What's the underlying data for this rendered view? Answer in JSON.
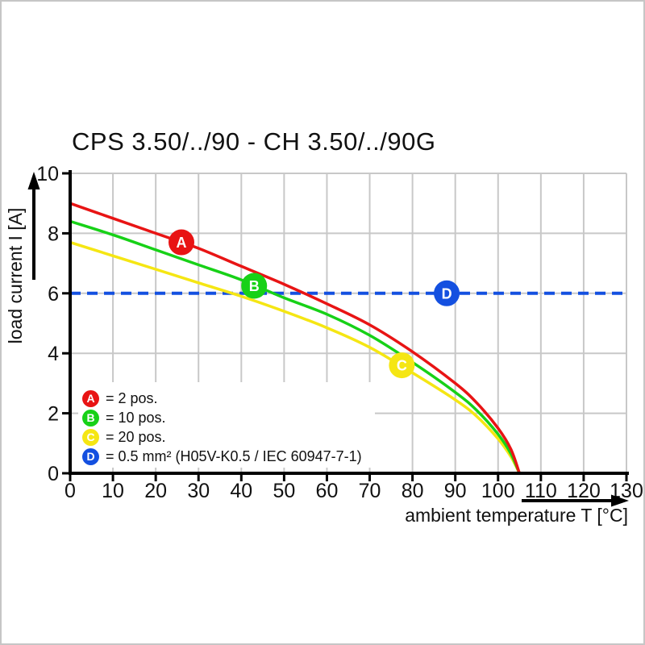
{
  "page": {
    "background": "#ffffff",
    "frame_color": "#c6c6c6"
  },
  "chart_data": {
    "type": "line",
    "title": "CPS 3.50/../90 - CH 3.50/../90G",
    "xlabel": "ambient temperature T [°C]",
    "ylabel": "load current I [A]",
    "xlim": [
      0,
      130
    ],
    "ylim": [
      0,
      10
    ],
    "x_ticks": [
      0,
      10,
      20,
      30,
      40,
      50,
      60,
      70,
      80,
      90,
      100,
      110,
      120,
      130
    ],
    "y_ticks": [
      0,
      2,
      4,
      6,
      8,
      10
    ],
    "grid": true,
    "grid_color": "#c8c8c8",
    "axis_color": "#000000",
    "series": [
      {
        "id": "A",
        "name": "2 pos.",
        "color": "#e81414",
        "style": "solid",
        "points": [
          [
            0,
            9.0
          ],
          [
            10,
            8.5
          ],
          [
            20,
            8.0
          ],
          [
            30,
            7.5
          ],
          [
            40,
            6.9
          ],
          [
            50,
            6.3
          ],
          [
            60,
            5.65
          ],
          [
            70,
            4.95
          ],
          [
            80,
            4.05
          ],
          [
            90,
            3.0
          ],
          [
            95,
            2.35
          ],
          [
            100,
            1.5
          ],
          [
            103,
            0.8
          ],
          [
            105,
            0
          ]
        ]
      },
      {
        "id": "B",
        "name": "10 pos.",
        "color": "#17d117",
        "style": "solid",
        "points": [
          [
            0,
            8.4
          ],
          [
            10,
            7.95
          ],
          [
            20,
            7.45
          ],
          [
            30,
            6.95
          ],
          [
            40,
            6.45
          ],
          [
            50,
            5.85
          ],
          [
            60,
            5.3
          ],
          [
            70,
            4.6
          ],
          [
            80,
            3.7
          ],
          [
            90,
            2.7
          ],
          [
            95,
            2.1
          ],
          [
            100,
            1.3
          ],
          [
            103,
            0.65
          ],
          [
            105,
            0
          ]
        ]
      },
      {
        "id": "C",
        "name": "20 pos.",
        "color": "#f5e613",
        "style": "solid",
        "points": [
          [
            0,
            7.7
          ],
          [
            10,
            7.25
          ],
          [
            20,
            6.8
          ],
          [
            30,
            6.35
          ],
          [
            40,
            5.9
          ],
          [
            50,
            5.4
          ],
          [
            60,
            4.85
          ],
          [
            70,
            4.2
          ],
          [
            80,
            3.35
          ],
          [
            90,
            2.45
          ],
          [
            95,
            1.9
          ],
          [
            100,
            1.15
          ],
          [
            103,
            0.55
          ],
          [
            105,
            0
          ]
        ]
      },
      {
        "id": "D",
        "name": "0.5 mm² (H05V-K0.5 / IEC 60947-7-1)",
        "color": "#1450e0",
        "style": "dashed",
        "points": [
          [
            0,
            6
          ],
          [
            130,
            6
          ]
        ]
      }
    ],
    "markers": [
      {
        "label": "A",
        "x": 26,
        "y": 7.7
      },
      {
        "label": "B",
        "x": 43,
        "y": 6.25
      },
      {
        "label": "C",
        "x": 77.5,
        "y": 3.6
      },
      {
        "label": "D",
        "x": 88,
        "y": 6.0
      }
    ],
    "legend": {
      "position": "inside-bottom-left",
      "items": [
        {
          "key": "A",
          "label": "= 2 pos.",
          "color": "#e81414"
        },
        {
          "key": "B",
          "label": "= 10 pos.",
          "color": "#17d117"
        },
        {
          "key": "C",
          "label": "= 20 pos.",
          "color": "#f5e613"
        },
        {
          "key": "D",
          "label": "= 0.5 mm² (H05V-K0.5 / IEC 60947-7-1)",
          "color": "#1450e0"
        }
      ]
    }
  }
}
